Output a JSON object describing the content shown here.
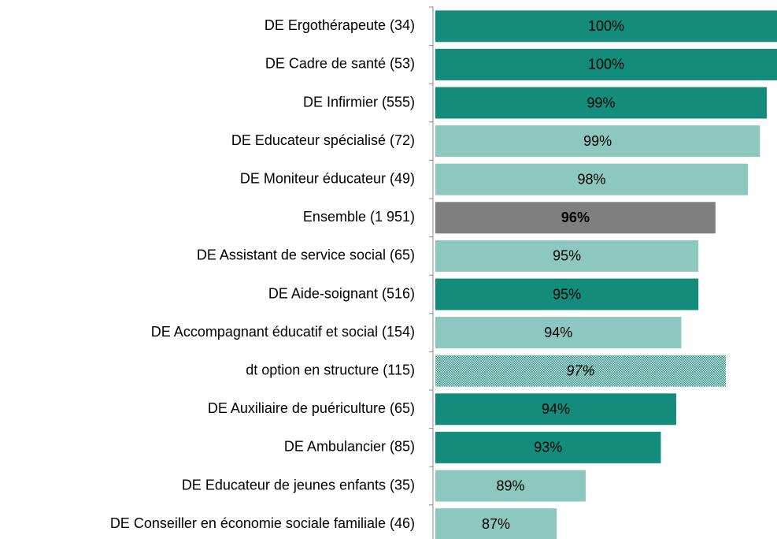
{
  "chart_data": {
    "type": "barh",
    "categories": [
      "DE Ergothérapeute (34)",
      "DE Cadre de santé (53)",
      "DE Infirmier (555)",
      "DE Educateur spécialisé (72)",
      "DE Moniteur éducateur (49)",
      "Ensemble (1 951)",
      "DE Assistant de service social (65)",
      "DE Aide-soignant (516)",
      "DE Accompagnant éducatif et social (154)",
      "dt option en structure (115)",
      "DE Auxiliaire de puériculture (65)",
      "DE Ambulancier (85)",
      "DE Educateur de jeunes enfants (35)",
      "DE Conseiller en économie sociale familiale (46)"
    ],
    "values": [
      100,
      100,
      99.4,
      99.0,
      98.3,
      96.4,
      95.4,
      95.4,
      94.4,
      97.0,
      94.1,
      93.2,
      88.8,
      87.1
    ],
    "value_labels": [
      "100%",
      "100%",
      "99%",
      "99%",
      "98%",
      "96%",
      "95%",
      "95%",
      "94%",
      "97%",
      "94%",
      "93%",
      "89%",
      "87%"
    ],
    "colors": [
      "#138c7c",
      "#138c7c",
      "#138c7c",
      "#8cc8bf",
      "#8cc8bf",
      "#7f7f7f",
      "#8cc8bf",
      "#138c7c",
      "#8cc8bf",
      "#138c7c",
      "#138c7c",
      "#138c7c",
      "#8cc8bf",
      "#8cc8bf"
    ],
    "pattern": [
      9
    ],
    "bold_labels": [
      5
    ],
    "italic_labels": [
      9
    ],
    "xlim": [
      80,
      100
    ]
  }
}
